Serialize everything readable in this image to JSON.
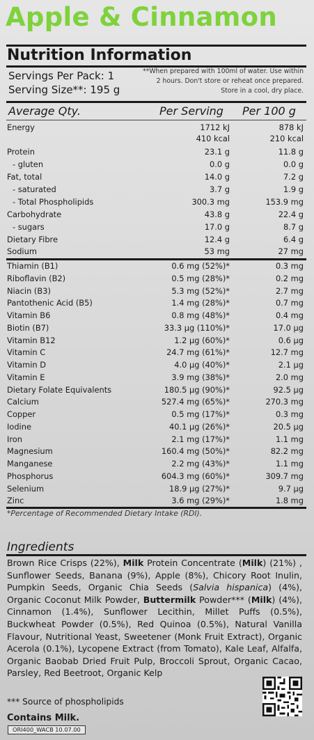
{
  "title": "Apple & Cinnamon",
  "panel": {
    "heading": "Nutrition Information",
    "servings_per_pack": "Servings Per Pack: 1",
    "serving_size": "Serving Size**: 195 g",
    "note": "**When prepared with 100ml of water. Use within 2 hours. Don't store or reheat once prepared. Store in a cool, dry place.",
    "col_qty": "Average Qty.",
    "col_serving": "Per Serving",
    "col_100g": "Per 100 g"
  },
  "rows_main": [
    {
      "label": "Energy",
      "ps": "1712 kJ",
      "p100": "878 kJ"
    },
    {
      "label": "",
      "ps": "410 kcal",
      "p100": "210 kcal"
    },
    {
      "label": "Protein",
      "ps": "23.1 g",
      "p100": "11.8 g"
    },
    {
      "label": "- gluten",
      "ps": "0.0 g",
      "p100": "0.0 g"
    },
    {
      "label": "Fat, total",
      "ps": "14.0 g",
      "p100": "7.2 g"
    },
    {
      "label": "- saturated",
      "ps": "3.7 g",
      "p100": "1.9 g"
    },
    {
      "label": "- Total Phospholipids",
      "ps": "300.3 mg",
      "p100": "153.9 mg"
    },
    {
      "label": "Carbohydrate",
      "ps": "43.8 g",
      "p100": "22.4 g"
    },
    {
      "label": "- sugars",
      "ps": "17.0 g",
      "p100": "8.7 g"
    },
    {
      "label": "Dietary Fibre",
      "ps": "12.4 g",
      "p100": "6.4 g"
    },
    {
      "label": "Sodium",
      "ps": "53 mg",
      "p100": "27 mg"
    }
  ],
  "rows_micro": [
    {
      "label": "Thiamin (B1)",
      "ps": "0.6 mg (52%)*",
      "p100": "0.3 mg"
    },
    {
      "label": "Riboflavin (B2)",
      "ps": "0.5 mg (28%)*",
      "p100": "0.2 mg"
    },
    {
      "label": "Niacin (B3)",
      "ps": "5.3 mg (52%)*",
      "p100": "2.7 mg"
    },
    {
      "label": "Pantothenic Acid (B5)",
      "ps": "1.4 mg (28%)*",
      "p100": "0.7 mg"
    },
    {
      "label": "Vitamin B6",
      "ps": "0.8 mg (48%)*",
      "p100": "0.4 mg"
    },
    {
      "label": "Biotin (B7)",
      "ps": "33.3 µg (110%)*",
      "p100": "17.0 µg"
    },
    {
      "label": "Vitamin B12",
      "ps": "1.2 µg (60%)*",
      "p100": "0.6 µg"
    },
    {
      "label": "Vitamin C",
      "ps": "24.7 mg (61%)*",
      "p100": "12.7 mg"
    },
    {
      "label": "Vitamin D",
      "ps": "4.0 µg (40%)*",
      "p100": "2.1 µg"
    },
    {
      "label": "Vitamin E",
      "ps": "3.9 mg (38%)*",
      "p100": "2.0 mg"
    },
    {
      "label": "Dietary Folate Equivalents",
      "ps": "180.5 µg (90%)*",
      "p100": "92.5 µg"
    },
    {
      "label": "Calcium",
      "ps": "527.4 mg (65%)*",
      "p100": "270.3 mg"
    },
    {
      "label": "Copper",
      "ps": "0.5 mg (17%)*",
      "p100": "0.3 mg"
    },
    {
      "label": "Iodine",
      "ps": "40.1 µg (26%)*",
      "p100": "20.5 µg"
    },
    {
      "label": "Iron",
      "ps": "2.1 mg (17%)*",
      "p100": "1.1 mg"
    },
    {
      "label": "Magnesium",
      "ps": "160.4 mg (50%)*",
      "p100": "82.2 mg"
    },
    {
      "label": "Manganese",
      "ps": "2.2 mg (43%)*",
      "p100": "1.1 mg"
    },
    {
      "label": "Phosphorus",
      "ps": "604.3 mg (60%)*",
      "p100": "309.7 mg"
    },
    {
      "label": "Selenium",
      "ps": "18.9 µg (27%)*",
      "p100": "9.7 µg"
    },
    {
      "label": "Zinc",
      "ps": "3.6 mg (29%)*",
      "p100": "1.8 mg"
    }
  ],
  "rdi_note": "*Percentage of Recommended Dietary Intake (RDI).",
  "ingredients": {
    "heading": "Ingredients",
    "parts": [
      {
        "t": "Brown Rice Crisps (22%), ",
        "b": false
      },
      {
        "t": "Milk",
        "b": true
      },
      {
        "t": " Protein Concentrate (",
        "b": false
      },
      {
        "t": "Milk",
        "b": true
      },
      {
        "t": ") (21%) , Sunflower Seeds, Banana (9%), Apple (8%), Chicory Root Inulin, Pumpkin Seeds, Organic Chia Seeds (",
        "b": false
      },
      {
        "t": "Salvia hispanica",
        "i": true
      },
      {
        "t": ") (4%), Organic Coconut Milk Powder, ",
        "b": false
      },
      {
        "t": "Buttermilk",
        "b": true
      },
      {
        "t": " Powder*** (",
        "b": false
      },
      {
        "t": "Milk",
        "b": true
      },
      {
        "t": ") (4%), Cinnamon (1.4%), Sunflower Lecithin, Millet Puffs (0.5%), Buckwheat Powder (0.5%), Red Quinoa (0.5%), Natural Vanilla Flavour, Nutritional Yeast, Sweetener (Monk Fruit Extract), Organic Acerola (0.1%), Lycopene Extract (from Tomato), Kale Leaf, Alfalfa, Organic Baobab Dried Fruit Pulp, Broccoli Sprout, Organic Cacao, Parsley, Red Beetroot, Organic Kelp",
        "b": false
      }
    ]
  },
  "source_note": "*** Source of phospholipids",
  "contains": "Contains Milk.",
  "batch_code": "ORI400_WACB 10.07.00",
  "colors": {
    "title_green": "#7ed23b",
    "text": "#1a1a1a"
  }
}
